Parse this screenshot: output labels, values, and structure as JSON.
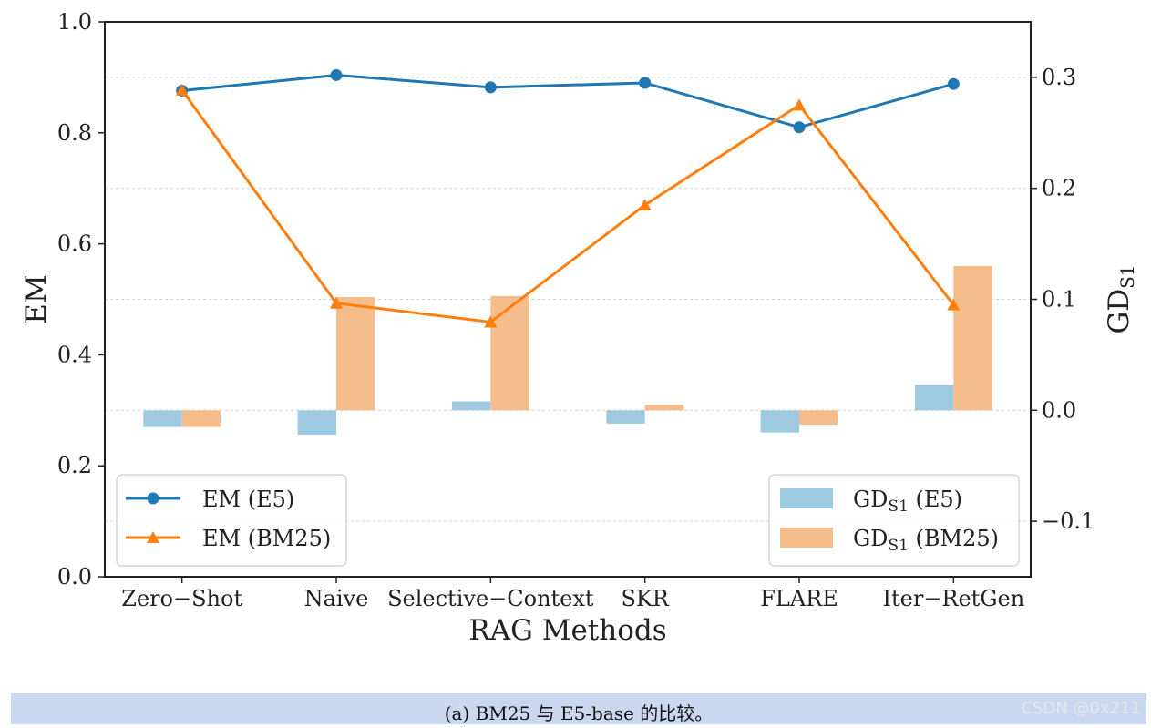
{
  "chart_data": {
    "type": "bar+line",
    "xlabel": "RAG Methods",
    "ylabel_left": "EM",
    "ylabel_right": {
      "main": "GD",
      "sub": "S1"
    },
    "categories": [
      "Zero−Shot",
      "Naive",
      "Selective−Context",
      "SKR",
      "FLARE",
      "Iter−RetGen"
    ],
    "ylim_left": [
      0.0,
      1.0
    ],
    "yticks_left": [
      "0.0",
      "0.2",
      "0.4",
      "0.6",
      "0.8",
      "1.0"
    ],
    "ylim_right": [
      -0.15,
      0.35
    ],
    "yticks_right": [
      "−0.1",
      "0.0",
      "0.1",
      "0.2",
      "0.3"
    ],
    "grid": "horizontal, dotted",
    "line_series": [
      {
        "name": "EM (E5)",
        "marker": "circle",
        "color": "#1f77b4",
        "values": [
          0.876,
          0.904,
          0.882,
          0.89,
          0.81,
          0.888
        ]
      },
      {
        "name": "EM (BM25)",
        "marker": "triangle",
        "color": "#ff7f0e",
        "values": [
          0.877,
          0.493,
          0.459,
          0.67,
          0.85,
          0.49
        ]
      }
    ],
    "bar_series": [
      {
        "name_main": "GD",
        "name_sub": "S1",
        "name_suffix": " (E5)",
        "color": "#9ecae1",
        "values": [
          -0.015,
          -0.022,
          0.008,
          -0.012,
          -0.02,
          0.023
        ]
      },
      {
        "name_main": "GD",
        "name_sub": "S1",
        "name_suffix": " (BM25)",
        "color": "#f5bd8c",
        "values": [
          -0.015,
          0.102,
          0.103,
          0.005,
          -0.013,
          0.13
        ]
      }
    ],
    "legend_left_position": "lower-left",
    "legend_right_position": "lower-right"
  },
  "caption": {
    "text": "(a) BM25 与 E5-base 的比较。",
    "watermark": "CSDN @0x211"
  }
}
